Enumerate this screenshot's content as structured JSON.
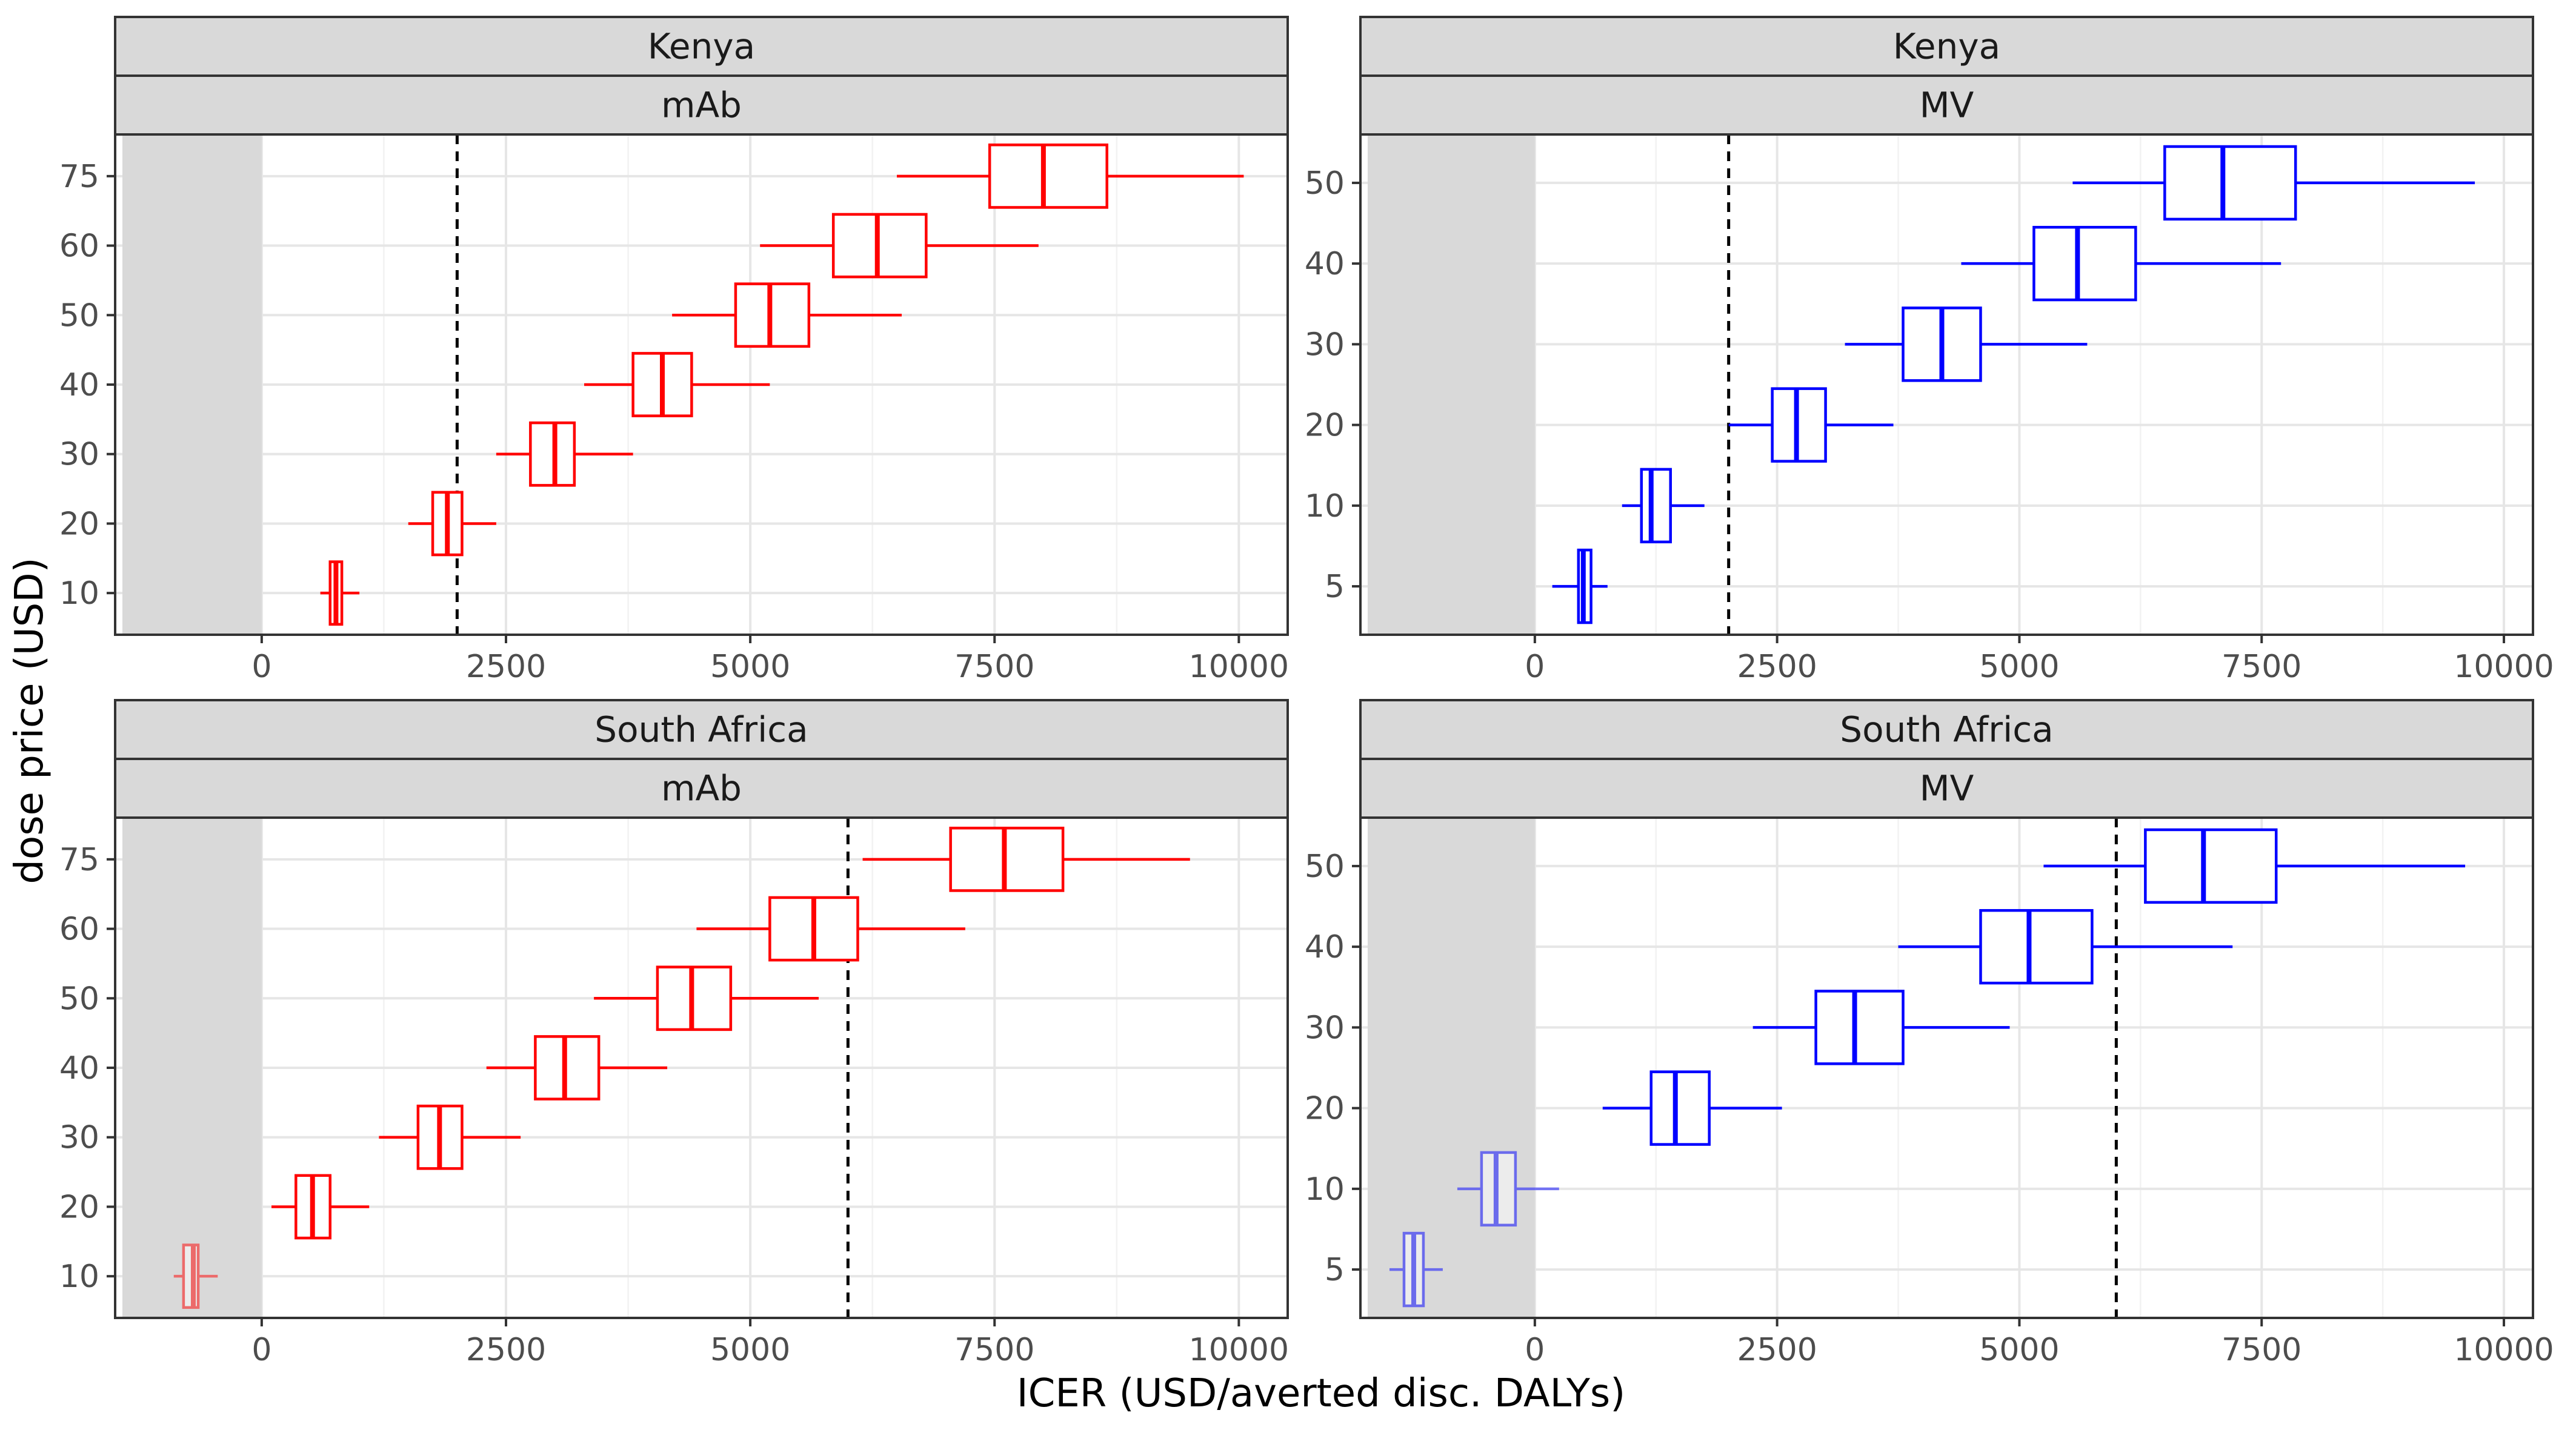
{
  "axes": {
    "xlabel": "ICER (USD/averted disc. DALYs)",
    "ylabel": "dose price (USD)"
  },
  "colors": {
    "mAb": "#ff0000",
    "MV": "#0000ff",
    "negative_region": "#d9d9d9",
    "threshold_line": "#000000"
  },
  "chart_data": [
    {
      "type": "boxplot",
      "facet_row": "Kenya",
      "facet_col": "mAb",
      "xlim": [
        -1500,
        10500
      ],
      "x_ticks": [
        0,
        2500,
        5000,
        7500,
        10000
      ],
      "y_categories": [
        "10",
        "20",
        "30",
        "40",
        "50",
        "60",
        "75"
      ],
      "threshold": 2000,
      "shaded_region": [
        -1500,
        0
      ],
      "boxes": [
        {
          "y": "10",
          "whisker_low": 600,
          "q1": 700,
          "median": 760,
          "q3": 820,
          "whisker_high": 1000,
          "faded": false
        },
        {
          "y": "20",
          "whisker_low": 1500,
          "q1": 1750,
          "median": 1900,
          "q3": 2050,
          "whisker_high": 2400,
          "faded": false
        },
        {
          "y": "30",
          "whisker_low": 2400,
          "q1": 2750,
          "median": 3000,
          "q3": 3200,
          "whisker_high": 3800,
          "faded": false
        },
        {
          "y": "40",
          "whisker_low": 3300,
          "q1": 3800,
          "median": 4100,
          "q3": 4400,
          "whisker_high": 5200,
          "faded": false
        },
        {
          "y": "50",
          "whisker_low": 4200,
          "q1": 4850,
          "median": 5200,
          "q3": 5600,
          "whisker_high": 6550,
          "faded": false
        },
        {
          "y": "60",
          "whisker_low": 5100,
          "q1": 5850,
          "median": 6300,
          "q3": 6800,
          "whisker_high": 7950,
          "faded": false
        },
        {
          "y": "75",
          "whisker_low": 6500,
          "q1": 7450,
          "median": 8000,
          "q3": 8650,
          "whisker_high": 10050,
          "faded": false
        }
      ]
    },
    {
      "type": "boxplot",
      "facet_row": "Kenya",
      "facet_col": "MV",
      "xlim": [
        -1800,
        10300
      ],
      "x_ticks": [
        0,
        2500,
        5000,
        7500,
        10000
      ],
      "y_categories": [
        "5",
        "10",
        "20",
        "30",
        "40",
        "50"
      ],
      "threshold": 2000,
      "shaded_region": [
        -1800,
        0
      ],
      "boxes": [
        {
          "y": "5",
          "whisker_low": 180,
          "q1": 450,
          "median": 500,
          "q3": 580,
          "whisker_high": 750,
          "faded": false
        },
        {
          "y": "10",
          "whisker_low": 900,
          "q1": 1100,
          "median": 1200,
          "q3": 1400,
          "whisker_high": 1750,
          "faded": false
        },
        {
          "y": "20",
          "whisker_low": 2000,
          "q1": 2450,
          "median": 2700,
          "q3": 3000,
          "whisker_high": 3700,
          "faded": false
        },
        {
          "y": "30",
          "whisker_low": 3200,
          "q1": 3800,
          "median": 4200,
          "q3": 4600,
          "whisker_high": 5700,
          "faded": false
        },
        {
          "y": "40",
          "whisker_low": 4400,
          "q1": 5150,
          "median": 5600,
          "q3": 6200,
          "whisker_high": 7700,
          "faded": false
        },
        {
          "y": "50",
          "whisker_low": 5550,
          "q1": 6500,
          "median": 7100,
          "q3": 7850,
          "whisker_high": 9700,
          "faded": false
        }
      ]
    },
    {
      "type": "boxplot",
      "facet_row": "South Africa",
      "facet_col": "mAb",
      "xlim": [
        -1500,
        10500
      ],
      "x_ticks": [
        0,
        2500,
        5000,
        7500,
        10000
      ],
      "y_categories": [
        "10",
        "20",
        "30",
        "40",
        "50",
        "60",
        "75"
      ],
      "threshold": 6000,
      "shaded_region": [
        -1500,
        0
      ],
      "boxes": [
        {
          "y": "10",
          "whisker_low": -900,
          "q1": -800,
          "median": -700,
          "q3": -650,
          "whisker_high": -450,
          "faded": true
        },
        {
          "y": "20",
          "whisker_low": 100,
          "q1": 350,
          "median": 520,
          "q3": 700,
          "whisker_high": 1100,
          "faded": false
        },
        {
          "y": "30",
          "whisker_low": 1200,
          "q1": 1600,
          "median": 1820,
          "q3": 2050,
          "whisker_high": 2650,
          "faded": false
        },
        {
          "y": "40",
          "whisker_low": 2300,
          "q1": 2800,
          "median": 3100,
          "q3": 3450,
          "whisker_high": 4150,
          "faded": false
        },
        {
          "y": "50",
          "whisker_low": 3400,
          "q1": 4050,
          "median": 4400,
          "q3": 4800,
          "whisker_high": 5700,
          "faded": false
        },
        {
          "y": "60",
          "whisker_low": 4450,
          "q1": 5200,
          "median": 5650,
          "q3": 6100,
          "whisker_high": 7200,
          "faded": false
        },
        {
          "y": "75",
          "whisker_low": 6150,
          "q1": 7050,
          "median": 7600,
          "q3": 8200,
          "whisker_high": 9500,
          "faded": false
        }
      ]
    },
    {
      "type": "boxplot",
      "facet_row": "South Africa",
      "facet_col": "MV",
      "xlim": [
        -1800,
        10300
      ],
      "x_ticks": [
        0,
        2500,
        5000,
        7500,
        10000
      ],
      "y_categories": [
        "5",
        "10",
        "20",
        "30",
        "40",
        "50"
      ],
      "threshold": 6000,
      "shaded_region": [
        -1800,
        0
      ],
      "boxes": [
        {
          "y": "5",
          "whisker_low": -1500,
          "q1": -1350,
          "median": -1250,
          "q3": -1150,
          "whisker_high": -950,
          "faded": true
        },
        {
          "y": "10",
          "whisker_low": -800,
          "q1": -550,
          "median": -400,
          "q3": -200,
          "whisker_high": 250,
          "faded": true
        },
        {
          "y": "20",
          "whisker_low": 700,
          "q1": 1200,
          "median": 1450,
          "q3": 1800,
          "whisker_high": 2550,
          "faded": false
        },
        {
          "y": "30",
          "whisker_low": 2250,
          "q1": 2900,
          "median": 3300,
          "q3": 3800,
          "whisker_high": 4900,
          "faded": false
        },
        {
          "y": "40",
          "whisker_low": 3750,
          "q1": 4600,
          "median": 5100,
          "q3": 5750,
          "whisker_high": 7200,
          "faded": false
        },
        {
          "y": "50",
          "whisker_low": 5250,
          "q1": 6300,
          "median": 6900,
          "q3": 7650,
          "whisker_high": 9600,
          "faded": false
        }
      ]
    }
  ]
}
